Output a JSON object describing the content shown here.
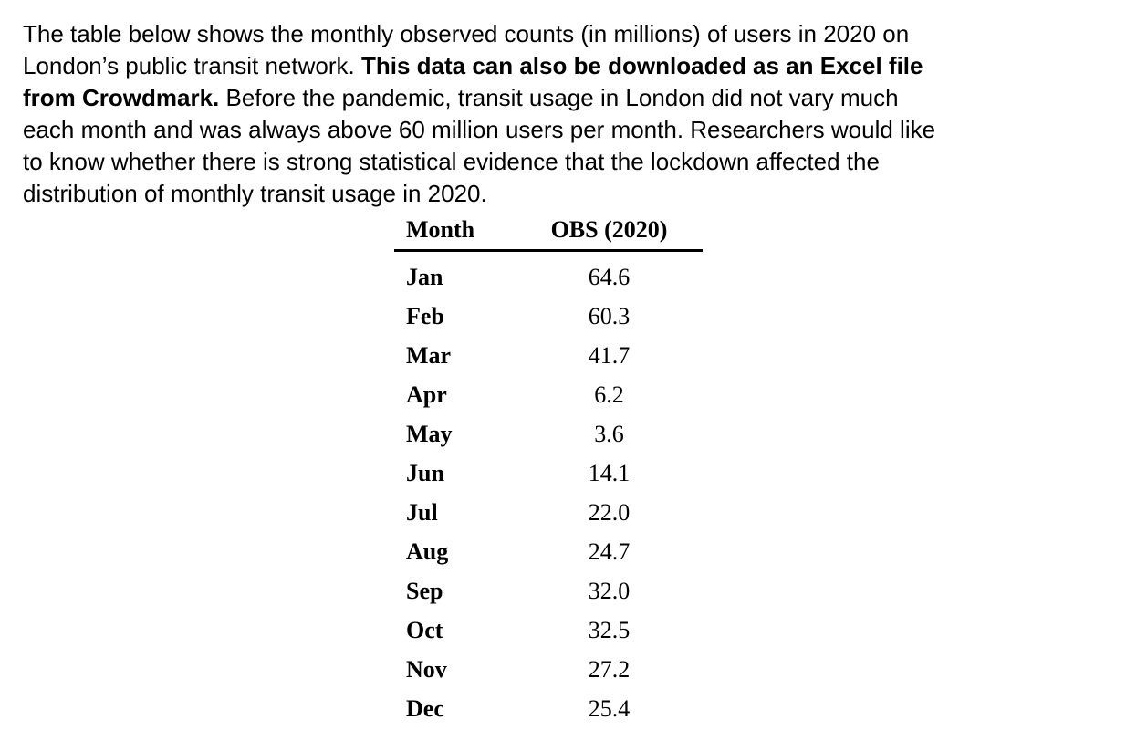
{
  "page": {
    "background": "#ffffff",
    "text_color": "#000000"
  },
  "paragraph": {
    "lines": [
      {
        "runs": [
          {
            "text": "The table below shows the monthly observed counts (in millions) of users in 2020 on",
            "bold": false
          }
        ]
      },
      {
        "runs": [
          {
            "text": "London’s public transit network. ",
            "bold": false
          },
          {
            "text": "This data can also be downloaded as an Excel file",
            "bold": true
          }
        ]
      },
      {
        "runs": [
          {
            "text": "from Crowdmark.",
            "bold": true
          },
          {
            "text": " Before the pandemic, transit usage in London did not vary much",
            "bold": false
          }
        ]
      },
      {
        "runs": [
          {
            "text": "each month and was always above 60 million users per month. Researchers would like",
            "bold": false
          }
        ]
      },
      {
        "runs": [
          {
            "text": "to know whether there is strong statistical evidence that the lockdown affected the",
            "bold": false
          }
        ]
      },
      {
        "runs": [
          {
            "text": "distribution of monthly transit usage in 2020.",
            "bold": false
          }
        ]
      }
    ]
  },
  "table": {
    "headers": [
      "Month",
      "OBS (2020)"
    ],
    "rows": [
      {
        "month": "Jan",
        "obs": "64.6"
      },
      {
        "month": "Feb",
        "obs": "60.3"
      },
      {
        "month": "Mar",
        "obs": "41.7"
      },
      {
        "month": "Apr",
        "obs": "6.2"
      },
      {
        "month": "May",
        "obs": "3.6"
      },
      {
        "month": "Jun",
        "obs": "14.1"
      },
      {
        "month": "Jul",
        "obs": "22.0"
      },
      {
        "month": "Aug",
        "obs": "24.7"
      },
      {
        "month": "Sep",
        "obs": "32.0"
      },
      {
        "month": "Oct",
        "obs": "32.5"
      },
      {
        "month": "Nov",
        "obs": "27.2"
      },
      {
        "month": "Dec",
        "obs": "25.4"
      }
    ]
  }
}
